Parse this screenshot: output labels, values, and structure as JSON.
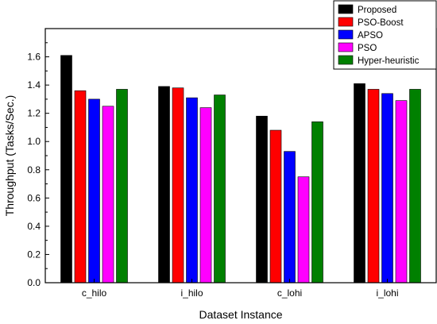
{
  "chart_data": {
    "type": "bar",
    "title": "",
    "xlabel": "Dataset Instance",
    "ylabel": "Throughput (Tasks/Sec.)",
    "categories": [
      "c_hilo",
      "i_hilo",
      "c_lohi",
      "i_lohi"
    ],
    "ylim": [
      0,
      1.8
    ],
    "yticks": [
      "0.0",
      "0.2",
      "0.4",
      "0.6",
      "0.8",
      "1.0",
      "1.2",
      "1.4",
      "1.6"
    ],
    "legend_position": "top-right",
    "grid": false,
    "series": [
      {
        "name": "Proposed",
        "color": "#000000",
        "values": [
          1.61,
          1.39,
          1.18,
          1.41
        ]
      },
      {
        "name": "PSO-Boost",
        "color": "#ff0000",
        "values": [
          1.36,
          1.38,
          1.08,
          1.37
        ]
      },
      {
        "name": "APSO",
        "color": "#0000ff",
        "values": [
          1.3,
          1.31,
          0.93,
          1.34
        ]
      },
      {
        "name": "PSO",
        "color": "#ff00ff",
        "values": [
          1.25,
          1.24,
          0.75,
          1.29
        ]
      },
      {
        "name": "Hyper-heuristic",
        "color": "#008000",
        "values": [
          1.37,
          1.33,
          1.14,
          1.37
        ]
      }
    ]
  }
}
